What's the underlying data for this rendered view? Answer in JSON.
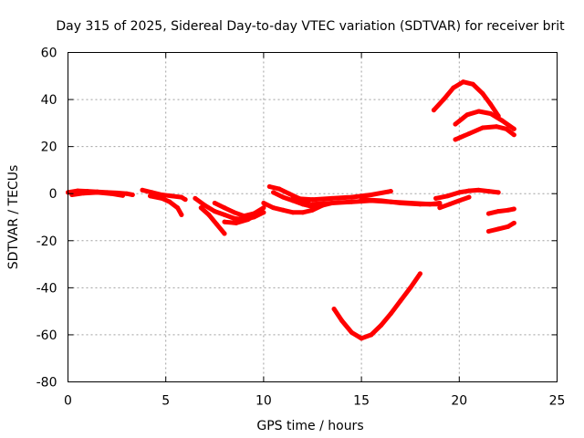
{
  "chart_data": {
    "type": "scatter",
    "title": "Day 315 of 2025, Sidereal Day-to-day VTEC variation (SDTVAR) for receiver brit",
    "xlabel": "GPS time / hours",
    "ylabel": "SDTVAR / TECUs",
    "xlim": [
      0,
      25
    ],
    "ylim": [
      -80,
      60
    ],
    "x_ticks": [
      0,
      5,
      10,
      15,
      20,
      25
    ],
    "y_ticks": [
      -80,
      -60,
      -40,
      -20,
      0,
      20,
      40,
      60
    ],
    "grid": true,
    "marker_color": "#ff0000",
    "series": [
      {
        "x": [
          0.0,
          0.5,
          1.0,
          1.5,
          2.0,
          2.5,
          3.0,
          3.3
        ],
        "y": [
          0.5,
          1.2,
          1.0,
          0.8,
          0.5,
          0.3,
          0.0,
          -0.5
        ]
      },
      {
        "x": [
          0.2,
          0.8,
          1.5,
          2.2,
          2.8
        ],
        "y": [
          -0.5,
          0.2,
          0.5,
          0.0,
          -0.8
        ]
      },
      {
        "x": [
          3.8,
          4.3,
          4.8,
          5.3,
          5.8,
          6.0
        ],
        "y": [
          1.5,
          0.5,
          -0.5,
          -1.0,
          -1.5,
          -2.5
        ]
      },
      {
        "x": [
          4.2,
          4.8,
          5.2,
          5.6,
          5.8
        ],
        "y": [
          -1.0,
          -2.0,
          -3.5,
          -6.0,
          -9.0
        ]
      },
      {
        "x": [
          6.5,
          7.0,
          7.5,
          8.0,
          8.5,
          9.0,
          9.5,
          10.0
        ],
        "y": [
          -2.0,
          -5.0,
          -7.5,
          -9.0,
          -10.5,
          -11.0,
          -10.0,
          -8.0
        ]
      },
      {
        "x": [
          6.8,
          7.2,
          7.6,
          8.0
        ],
        "y": [
          -6.0,
          -9.0,
          -13.0,
          -17.0
        ]
      },
      {
        "x": [
          7.5,
          8.0,
          8.5,
          9.0,
          9.5,
          10.0
        ],
        "y": [
          -4.0,
          -6.0,
          -8.0,
          -9.5,
          -8.5,
          -6.0
        ]
      },
      {
        "x": [
          8.0,
          8.6,
          9.2,
          9.8
        ],
        "y": [
          -12.0,
          -12.5,
          -11.0,
          -8.0
        ]
      },
      {
        "x": [
          10.0,
          10.5,
          11.0,
          11.5,
          12.0,
          12.5,
          13.0
        ],
        "y": [
          -4.0,
          -6.0,
          -7.0,
          -8.0,
          -8.0,
          -7.0,
          -5.0
        ]
      },
      {
        "x": [
          10.3,
          10.8,
          11.3,
          11.8,
          12.3
        ],
        "y": [
          3.0,
          2.0,
          0.0,
          -2.0,
          -3.5
        ]
      },
      {
        "x": [
          10.5,
          11.0,
          11.5,
          12.0,
          12.5,
          13.0,
          13.5
        ],
        "y": [
          0.5,
          -1.5,
          -3.0,
          -4.5,
          -5.5,
          -5.0,
          -4.0
        ]
      },
      {
        "x": [
          11.5,
          12.5,
          13.5,
          14.5,
          15.5,
          16.5
        ],
        "y": [
          -2.0,
          -2.5,
          -2.0,
          -1.5,
          -0.5,
          1.0
        ]
      },
      {
        "x": [
          12.5,
          13.5,
          14.5,
          15.5,
          16.5,
          17.5,
          18.5,
          19.0
        ],
        "y": [
          -4.5,
          -4.0,
          -3.5,
          -3.0,
          -3.5,
          -4.0,
          -4.5,
          -4.0
        ]
      },
      {
        "x": [
          15.0,
          16.0,
          17.0,
          18.0,
          19.0
        ],
        "y": [
          -2.5,
          -3.0,
          -4.0,
          -4.5,
          -4.5
        ]
      },
      {
        "x": [
          13.6,
          14.0,
          14.5,
          15.0,
          15.5,
          16.0,
          16.5,
          17.0,
          17.5,
          18.0
        ],
        "y": [
          -49.0,
          -54.0,
          -59.0,
          -61.5,
          -60.0,
          -56.0,
          -51.0,
          -45.5,
          -40.0,
          -34.0
        ]
      },
      {
        "x": [
          18.8,
          19.4,
          20.0,
          20.5,
          21.0,
          21.5,
          22.0
        ],
        "y": [
          -2.0,
          -1.0,
          0.5,
          1.2,
          1.5,
          1.0,
          0.5
        ]
      },
      {
        "x": [
          19.0,
          19.5,
          20.0,
          20.5
        ],
        "y": [
          -6.0,
          -4.5,
          -3.0,
          -1.5
        ]
      },
      {
        "x": [
          18.7,
          19.2,
          19.7,
          20.2,
          20.7,
          21.2,
          21.6,
          22.0
        ],
        "y": [
          35.5,
          40.0,
          45.0,
          47.5,
          46.5,
          42.5,
          38.0,
          33.0
        ]
      },
      {
        "x": [
          19.8,
          20.4,
          21.0,
          21.6,
          22.2,
          22.8
        ],
        "y": [
          29.5,
          33.5,
          35.0,
          34.0,
          31.0,
          27.5
        ]
      },
      {
        "x": [
          19.8,
          20.5,
          21.2,
          21.9,
          22.4,
          22.8
        ],
        "y": [
          23.0,
          25.5,
          28.0,
          28.5,
          27.5,
          25.0
        ]
      },
      {
        "x": [
          21.5,
          22.0,
          22.5,
          22.8
        ],
        "y": [
          -8.5,
          -7.5,
          -7.0,
          -6.5
        ]
      },
      {
        "x": [
          21.5,
          22.0,
          22.5,
          22.8
        ],
        "y": [
          -16.0,
          -15.0,
          -14.0,
          -12.5
        ]
      }
    ]
  }
}
